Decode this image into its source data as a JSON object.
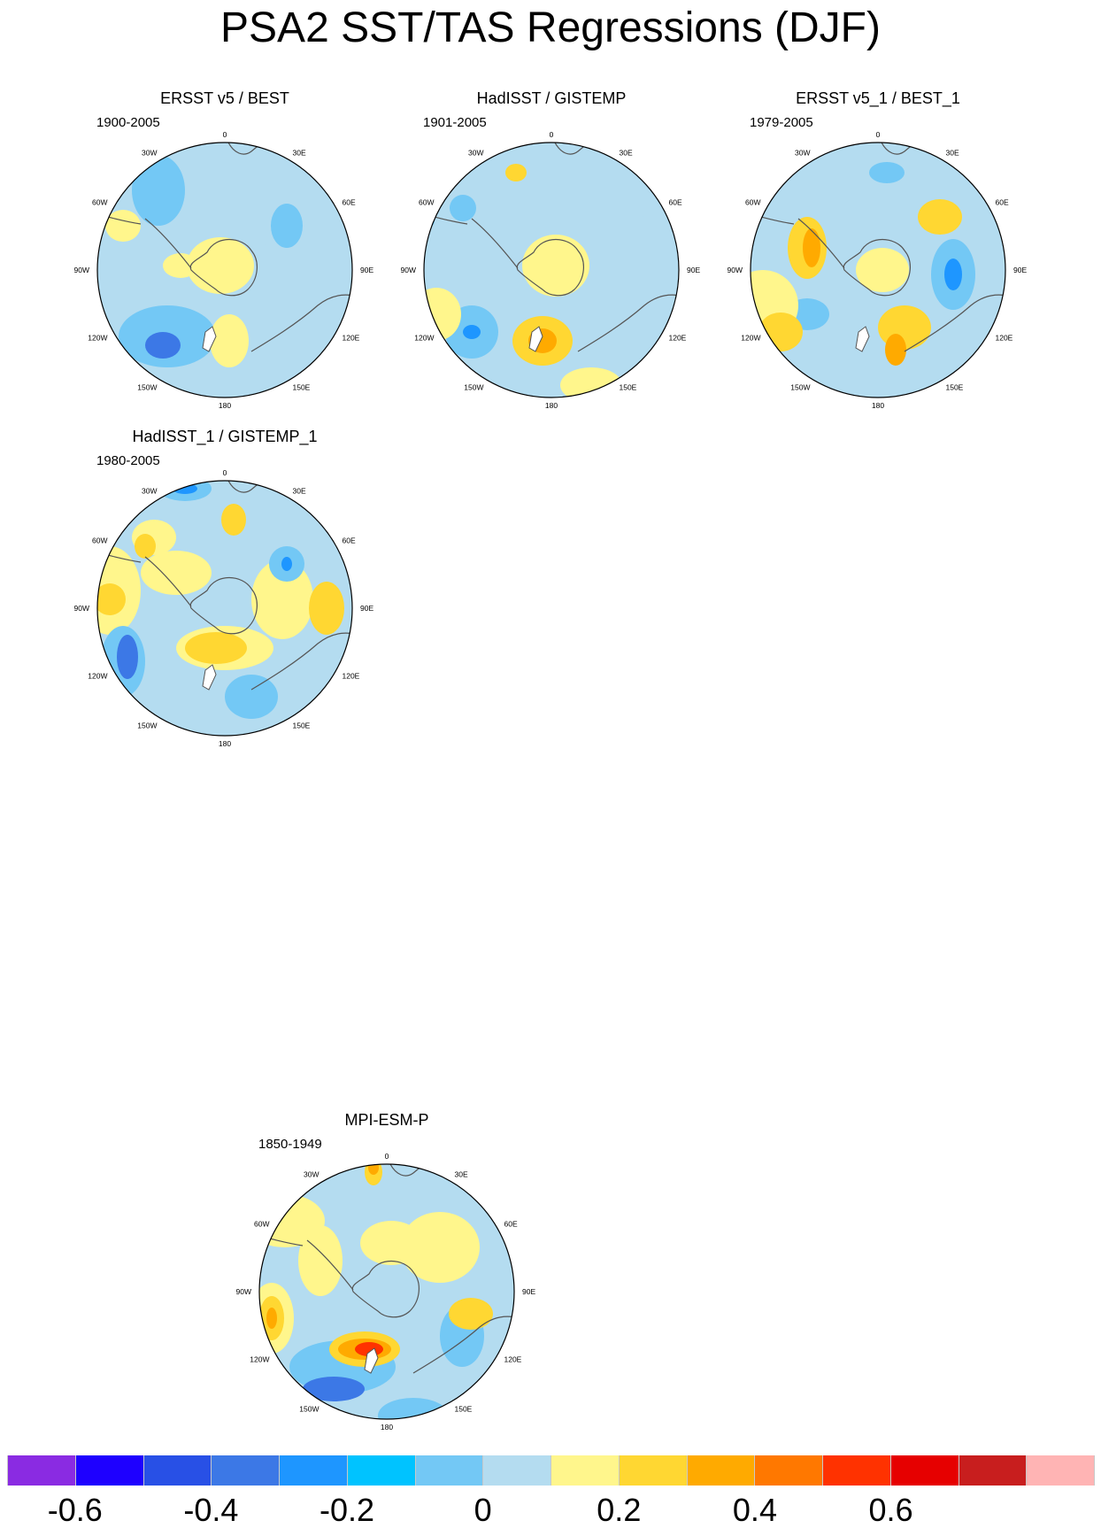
{
  "title": "PSA2 SST/TAS Regressions (DJF)",
  "panels": [
    {
      "title": "ERSST v5 / BEST",
      "period": "1900-2005"
    },
    {
      "title": "HadISST / GISTEMP",
      "period": "1901-2005"
    },
    {
      "title": "ERSST v5_1 / BEST_1",
      "period": "1979-2005"
    },
    {
      "title": "HadISST_1 / GISTEMP_1",
      "period": "1980-2005"
    },
    {
      "title": "MPI-ESM-P",
      "period": "1850-1949"
    }
  ],
  "longitude_labels": [
    "0",
    "30E",
    "60E",
    "90E",
    "120E",
    "150E",
    "180",
    "150W",
    "120W",
    "90W",
    "60W",
    "30W"
  ],
  "colorbar": {
    "colors": [
      "#8a2be2",
      "#1e00ff",
      "#2850e6",
      "#3c78e6",
      "#1e96ff",
      "#00c3ff",
      "#73c8f5",
      "#b4dcf0",
      "#fff68c",
      "#ffd732",
      "#ffaa00",
      "#ff7800",
      "#ff3200",
      "#e60000",
      "#c81e1e",
      "#ffb4b4"
    ],
    "labels": [
      "-0.6",
      "-0.4",
      "-0.2",
      "0",
      "0.2",
      "0.4",
      "0.6"
    ]
  }
}
